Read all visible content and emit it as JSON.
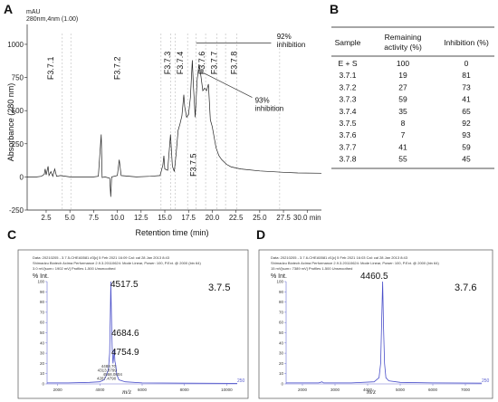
{
  "chart_data": [
    {
      "panel": "A",
      "type": "line",
      "header_unit": "mAU",
      "header_channel": "280nm,4nm (1.00)",
      "ylabel": "Absorbance (280 nm)",
      "xlabel": "Retention time (min)",
      "xlim": [
        0.5,
        31.5
      ],
      "ylim": [
        -250,
        1150
      ],
      "x_ticks": [
        {
          "v": 2.5,
          "label": "2.5"
        },
        {
          "v": 5.0,
          "label": "5.0"
        },
        {
          "v": 7.5,
          "label": "7.5"
        },
        {
          "v": 10.0,
          "label": "10.0"
        },
        {
          "v": 12.5,
          "label": "12.5"
        },
        {
          "v": 15.0,
          "label": "15.0"
        },
        {
          "v": 17.5,
          "label": "17.5"
        },
        {
          "v": 20.0,
          "label": "20.0"
        },
        {
          "v": 22.5,
          "label": "22.5"
        },
        {
          "v": 25.0,
          "label": "25.0"
        },
        {
          "v": 27.5,
          "label": "27.5"
        },
        {
          "v": 30.0,
          "label": "30.0 min"
        }
      ],
      "y_ticks": [
        {
          "v": -250,
          "label": "-250"
        },
        {
          "v": 0,
          "label": "0"
        },
        {
          "v": 250,
          "label": "250"
        },
        {
          "v": 500,
          "label": "500"
        },
        {
          "v": 750,
          "label": "750"
        },
        {
          "v": 1000,
          "label": "1000"
        }
      ],
      "fractions": [
        {
          "label": "F3.7.1",
          "x": 3.0,
          "y": 820
        },
        {
          "label": "F3.7.2",
          "x": 10.0,
          "y": 820
        },
        {
          "label": "F3.7.3",
          "x": 15.3,
          "y": 860
        },
        {
          "label": "F3.7.4",
          "x": 16.6,
          "y": 860
        },
        {
          "label": "F3.7.5",
          "x": 18.0,
          "y": 90
        },
        {
          "label": "F3.7.6",
          "x": 18.9,
          "y": 860
        },
        {
          "label": "F3.7.7",
          "x": 20.2,
          "y": 860
        },
        {
          "label": "F3.7.8",
          "x": 22.3,
          "y": 860
        }
      ],
      "dashed_lines_x": [
        4.2,
        5.1,
        14.6,
        15.6,
        16.1,
        17.4,
        18.3,
        19.3,
        20.5,
        21.4,
        22.6,
        27.1
      ],
      "annotations": [
        {
          "text": "92%",
          "text2": "inhibition",
          "x": 26.8,
          "y": 1040
        },
        {
          "text": "93%",
          "text2": "inhibition",
          "x": 24.5,
          "y": 560
        }
      ],
      "trace": [
        [
          0.5,
          0
        ],
        [
          1.5,
          0
        ],
        [
          2.0,
          5
        ],
        [
          2.3,
          20
        ],
        [
          2.4,
          60
        ],
        [
          2.5,
          15
        ],
        [
          2.7,
          80
        ],
        [
          2.8,
          10
        ],
        [
          3.0,
          40
        ],
        [
          3.2,
          5
        ],
        [
          3.4,
          60
        ],
        [
          3.6,
          5
        ],
        [
          4.0,
          10
        ],
        [
          5.0,
          0
        ],
        [
          7.5,
          0
        ],
        [
          8.0,
          5
        ],
        [
          8.3,
          320
        ],
        [
          8.4,
          -5
        ],
        [
          8.7,
          0
        ],
        [
          9.2,
          -10
        ],
        [
          9.3,
          -150
        ],
        [
          9.4,
          0
        ],
        [
          10.0,
          10
        ],
        [
          10.2,
          130
        ],
        [
          10.4,
          10
        ],
        [
          12.0,
          0
        ],
        [
          13.5,
          5
        ],
        [
          14.5,
          10
        ],
        [
          14.8,
          90
        ],
        [
          14.9,
          160
        ],
        [
          15.0,
          60
        ],
        [
          15.3,
          50
        ],
        [
          15.6,
          320
        ],
        [
          15.8,
          80
        ],
        [
          16.0,
          40
        ],
        [
          16.2,
          180
        ],
        [
          16.4,
          350
        ],
        [
          16.6,
          400
        ],
        [
          16.8,
          460
        ],
        [
          17.0,
          620
        ],
        [
          17.1,
          530
        ],
        [
          17.3,
          450
        ],
        [
          17.5,
          470
        ],
        [
          17.7,
          600
        ],
        [
          17.9,
          880
        ],
        [
          18.0,
          700
        ],
        [
          18.2,
          450
        ],
        [
          18.4,
          730
        ],
        [
          18.6,
          850
        ],
        [
          18.8,
          760
        ],
        [
          19.0,
          650
        ],
        [
          19.2,
          670
        ],
        [
          19.4,
          650
        ],
        [
          19.6,
          700
        ],
        [
          19.8,
          430
        ],
        [
          20.0,
          380
        ],
        [
          20.2,
          300
        ],
        [
          20.4,
          220
        ],
        [
          20.7,
          160
        ],
        [
          21.0,
          130
        ],
        [
          21.5,
          95
        ],
        [
          22.0,
          75
        ],
        [
          23.0,
          60
        ],
        [
          25.0,
          45
        ],
        [
          27.5,
          35
        ],
        [
          29.0,
          30
        ],
        [
          31.5,
          28
        ]
      ]
    },
    {
      "panel": "C",
      "type": "line",
      "title": "3.7.5",
      "header_lines": [
        "Data: 20210205 - 3.7.5-CHEA5581 #3[c] 5 Feb 2021 16:09 Cal: cal 28 Jan 2013 8:43",
        "Shimadzu Biotech Axima Performance 2.9.3.20110624: Mode Linear, Power: 100, P.Ext. @ 2000 (bin 64)",
        "3.0 mV[sum= 1902 mV] Profiles 1-500 Unsmoothed"
      ],
      "ylabel": "% Int.",
      "xlabel": "m/z",
      "xlim": [
        1500,
        10500
      ],
      "ylim": [
        0,
        100
      ],
      "x_ticks": [
        {
          "v": 2000,
          "label": "2000"
        },
        {
          "v": 4000,
          "label": "4000"
        },
        {
          "v": 6000,
          "label": "6000"
        },
        {
          "v": 8000,
          "label": "8000"
        },
        {
          "v": 10000,
          "label": "10000"
        }
      ],
      "y_ticks": [
        {
          "v": 0,
          "label": "0"
        },
        {
          "v": 10,
          "label": "10"
        },
        {
          "v": 20,
          "label": "20"
        },
        {
          "v": 30,
          "label": "30"
        },
        {
          "v": 40,
          "label": "40"
        },
        {
          "v": 50,
          "label": "50"
        },
        {
          "v": 60,
          "label": "60"
        },
        {
          "v": 70,
          "label": "70"
        },
        {
          "v": 80,
          "label": "80"
        },
        {
          "v": 90,
          "label": "90"
        },
        {
          "v": 100,
          "label": "100"
        }
      ],
      "peaks": [
        {
          "label": "4517.5",
          "x": 4517.5,
          "y": 100,
          "size": "major"
        },
        {
          "label": "4684.6",
          "x": 4684.6,
          "y": 38,
          "size": "major"
        },
        {
          "label": "4754.9",
          "x": 4754.9,
          "y": 22,
          "size": "major"
        },
        {
          "label": "4488.70",
          "x": 4488.7,
          "y": 16,
          "size": "minor"
        },
        {
          "label": "4313.8799",
          "x": 4313.9,
          "y": 12,
          "size": "minor"
        },
        {
          "label": "4568.0804",
          "x": 4568.0,
          "y": 8,
          "size": "minor"
        },
        {
          "label": "4287.4790",
          "x": 4287.5,
          "y": 4,
          "size": "minor"
        }
      ],
      "trace": [
        [
          1500,
          1
        ],
        [
          2500,
          1
        ],
        [
          3500,
          1.5
        ],
        [
          4000,
          2
        ],
        [
          4200,
          4
        ],
        [
          4300,
          8
        ],
        [
          4400,
          14
        ],
        [
          4460,
          30
        ],
        [
          4490,
          65
        ],
        [
          4517,
          100
        ],
        [
          4545,
          70
        ],
        [
          4580,
          35
        ],
        [
          4620,
          20
        ],
        [
          4660,
          28
        ],
        [
          4685,
          34
        ],
        [
          4710,
          22
        ],
        [
          4754,
          18
        ],
        [
          4800,
          9
        ],
        [
          4900,
          4
        ],
        [
          5200,
          2
        ],
        [
          6000,
          1
        ],
        [
          8000,
          0.8
        ],
        [
          10500,
          0.5
        ]
      ],
      "right_label": "250"
    },
    {
      "panel": "D",
      "type": "line",
      "title": "3.7.6",
      "header_lines": [
        "Data: 20210205 - 3.7.6-CHEA5581 #1[c] 5 Feb 2021 16:03 Cal: cal 28 Jan 2013 8:43",
        "Shimadzu Biotech Axima Performance 2.9.3.20110624: Mode Linear, Power: 100, P.Ext. @ 2000 (bin 64)",
        "15 mV[sum= 7389 mV] Profiles 1-500 Unsmoothed"
      ],
      "ylabel": "% Int.",
      "xlabel": "m/z",
      "xlim": [
        1500,
        7500
      ],
      "ylim": [
        0,
        100
      ],
      "x_ticks": [
        {
          "v": 2000,
          "label": "2000"
        },
        {
          "v": 3000,
          "label": "3000"
        },
        {
          "v": 4000,
          "label": "4000"
        },
        {
          "v": 5000,
          "label": "5000"
        },
        {
          "v": 6000,
          "label": "6000"
        },
        {
          "v": 7000,
          "label": "7000"
        }
      ],
      "y_ticks": [
        {
          "v": 0,
          "label": "0"
        },
        {
          "v": 10,
          "label": "10"
        },
        {
          "v": 20,
          "label": "20"
        },
        {
          "v": 30,
          "label": "30"
        },
        {
          "v": 40,
          "label": "40"
        },
        {
          "v": 50,
          "label": "50"
        },
        {
          "v": 60,
          "label": "60"
        },
        {
          "v": 70,
          "label": "70"
        },
        {
          "v": 80,
          "label": "80"
        },
        {
          "v": 90,
          "label": "90"
        },
        {
          "v": 100,
          "label": "100"
        }
      ],
      "peaks": [
        {
          "label": "4460.5",
          "x": 4460.5,
          "y": 100,
          "size": "major"
        }
      ],
      "trace": [
        [
          1500,
          1
        ],
        [
          2500,
          1
        ],
        [
          2600,
          2
        ],
        [
          2650,
          1
        ],
        [
          3500,
          1
        ],
        [
          4200,
          2
        ],
        [
          4350,
          6
        ],
        [
          4400,
          20
        ],
        [
          4430,
          60
        ],
        [
          4460,
          100
        ],
        [
          4490,
          55
        ],
        [
          4520,
          20
        ],
        [
          4560,
          6
        ],
        [
          4650,
          3
        ],
        [
          5000,
          1.5
        ],
        [
          6000,
          1
        ],
        [
          7500,
          0.8
        ]
      ],
      "right_label": "250"
    },
    {
      "panel": "B",
      "type": "table",
      "columns": [
        "Sample",
        "Remaining activity (%)",
        "Inhibition (%)"
      ],
      "column_lines": [
        [
          "Sample"
        ],
        [
          "Remaining",
          "activity (%)"
        ],
        [
          "Inhibition (%)"
        ]
      ],
      "rows": [
        [
          "E + S",
          "100",
          "0"
        ],
        [
          "3.7.1",
          "19",
          "81"
        ],
        [
          "3.7.2",
          "27",
          "73"
        ],
        [
          "3.7.3",
          "59",
          "41"
        ],
        [
          "3.7.4",
          "35",
          "65"
        ],
        [
          "3.7.5",
          "8",
          "92"
        ],
        [
          "3.7.6",
          "7",
          "93"
        ],
        [
          "3.7.7",
          "41",
          "59"
        ],
        [
          "3.7.8",
          "55",
          "45"
        ]
      ]
    }
  ],
  "panel_letters": {
    "a": "A",
    "b": "B",
    "c": "C",
    "d": "D"
  },
  "colors": {
    "trace_a": "#222222",
    "ms_trace": "#4a4fc9",
    "ms_axis": "#6a6fd0",
    "dashed": "#bbbbbb"
  }
}
